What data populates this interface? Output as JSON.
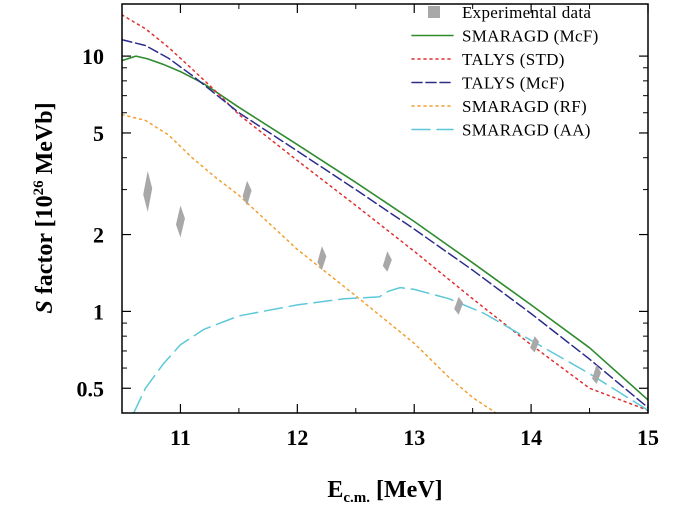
{
  "chart_data": {
    "type": "line",
    "x_axis": {
      "label_main": "E",
      "label_sub": "c.m.",
      "label_unit": " [MeV]",
      "range": [
        10.5,
        15
      ],
      "ticks": [
        11,
        12,
        13,
        14,
        15
      ],
      "tick_labels": [
        "11",
        "12",
        "13",
        "14",
        "15"
      ]
    },
    "y_axis": {
      "label_italic": "S",
      "label_text": " factor [10",
      "label_sup": "26",
      "label_unit": " MeVb]",
      "scale": "log",
      "range": [
        0.4,
        16
      ],
      "major_ticks": [
        0.5,
        1,
        2,
        5,
        10
      ],
      "tick_labels": [
        "0.5",
        "1",
        "2",
        "5",
        "10"
      ]
    },
    "grid": false,
    "legend_position": "top-right",
    "series": [
      {
        "name": "Experimental data",
        "kind": "markers",
        "color": "#a8a8a8",
        "points": [
          {
            "x": 10.72,
            "y": 2.95,
            "y_low": 2.45,
            "y_high": 3.55
          },
          {
            "x": 11.0,
            "y": 2.25,
            "y_low": 1.95,
            "y_high": 2.6
          },
          {
            "x": 11.57,
            "y": 2.9,
            "y_low": 2.6,
            "y_high": 3.25
          },
          {
            "x": 12.21,
            "y": 1.6,
            "y_low": 1.45,
            "y_high": 1.8
          },
          {
            "x": 12.77,
            "y": 1.55,
            "y_low": 1.43,
            "y_high": 1.72
          },
          {
            "x": 13.38,
            "y": 1.05,
            "y_low": 0.97,
            "y_high": 1.14
          },
          {
            "x": 14.03,
            "y": 0.74,
            "y_low": 0.69,
            "y_high": 0.8
          },
          {
            "x": 14.56,
            "y": 0.56,
            "y_low": 0.52,
            "y_high": 0.62
          }
        ]
      },
      {
        "name": "SMARAGD (McF)",
        "kind": "line",
        "style": "solid",
        "color": "#2e8b2e",
        "x": [
          10.5,
          10.62,
          10.72,
          10.85,
          11.0,
          11.2,
          11.5,
          12.0,
          12.5,
          13.0,
          13.5,
          14.0,
          14.5,
          15.0
        ],
        "y": [
          9.6,
          10.0,
          9.75,
          9.3,
          8.7,
          7.8,
          6.3,
          4.5,
          3.2,
          2.25,
          1.55,
          1.06,
          0.72,
          0.45
        ]
      },
      {
        "name": "TALYS (STD)",
        "kind": "line",
        "style": "dotted",
        "color": "#e03030",
        "x": [
          10.5,
          10.7,
          10.9,
          11.1,
          11.3,
          11.5,
          12.0,
          12.5,
          13.0,
          13.5,
          14.0,
          14.5,
          15.0
        ],
        "y": [
          14.5,
          12.8,
          10.8,
          8.9,
          7.3,
          5.9,
          3.9,
          2.6,
          1.72,
          1.12,
          0.74,
          0.5,
          0.41
        ]
      },
      {
        "name": "TALYS (McF)",
        "kind": "line",
        "style": "dashed",
        "color": "#2c2c8c",
        "x": [
          10.5,
          10.7,
          10.9,
          11.1,
          11.3,
          11.5,
          12.0,
          12.5,
          13.0,
          13.5,
          14.0,
          14.5,
          15.0
        ],
        "y": [
          11.6,
          11.0,
          9.8,
          8.4,
          7.1,
          6.0,
          4.25,
          3.0,
          2.1,
          1.45,
          0.98,
          0.65,
          0.42
        ]
      },
      {
        "name": "SMARAGD (RF)",
        "kind": "line",
        "style": "dotted",
        "color": "#f0a030",
        "x": [
          10.5,
          10.7,
          10.9,
          11.1,
          11.3,
          11.5,
          12.0,
          12.5,
          13.0,
          13.3,
          13.5,
          13.7
        ],
        "y": [
          5.9,
          5.6,
          4.9,
          4.0,
          3.35,
          2.85,
          1.75,
          1.15,
          0.75,
          0.55,
          0.46,
          0.4
        ]
      },
      {
        "name": "SMARAGD (AA)",
        "kind": "line",
        "style": "longdash",
        "color": "#5cc8d8",
        "x": [
          10.6,
          10.7,
          10.85,
          11.0,
          11.2,
          11.5,
          12.0,
          12.4,
          12.7,
          12.78,
          12.88,
          13.0,
          13.3,
          13.6,
          14.0,
          14.5,
          15.0
        ],
        "y": [
          0.4,
          0.5,
          0.62,
          0.74,
          0.85,
          0.96,
          1.06,
          1.12,
          1.14,
          1.2,
          1.24,
          1.22,
          1.12,
          0.98,
          0.77,
          0.57,
          0.41
        ]
      }
    ]
  }
}
